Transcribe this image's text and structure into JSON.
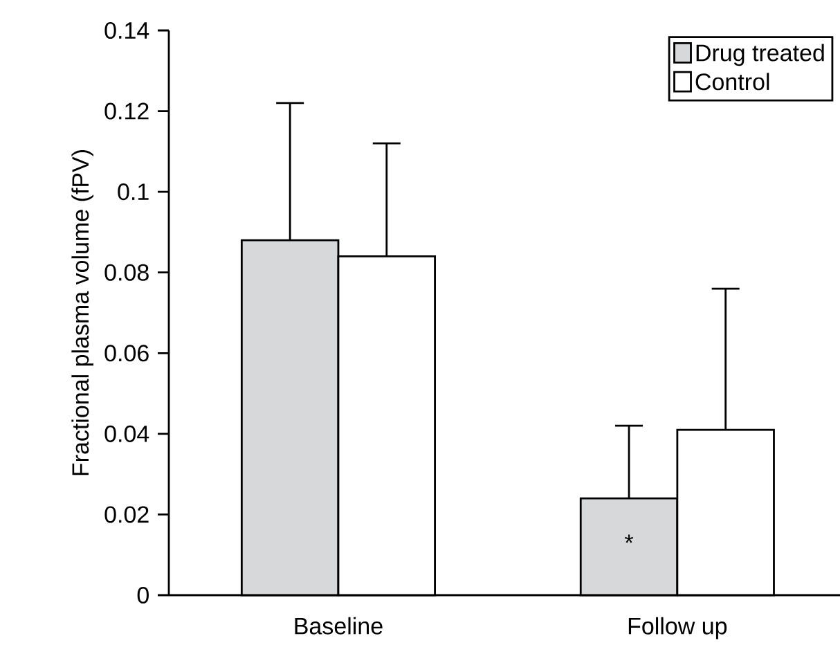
{
  "chart_data": {
    "type": "bar",
    "ylabel": "Fractional plasma volume (fPV)",
    "categories": [
      "Baseline",
      "Follow up"
    ],
    "series": [
      {
        "name": "Drug treated",
        "color": "#d7d8da",
        "values": [
          0.088,
          0.024
        ],
        "errors": [
          [
            0.088,
            0.122
          ],
          [
            0.024,
            0.042
          ]
        ]
      },
      {
        "name": "Control",
        "color": "#ffffff",
        "values": [
          0.084,
          0.041
        ],
        "errors": [
          [
            0.084,
            0.112
          ],
          [
            0.041,
            0.076
          ]
        ]
      }
    ],
    "ylim": [
      0,
      0.14
    ],
    "yticks": [
      0,
      0.02,
      0.04,
      0.06,
      0.08,
      0.1,
      0.12,
      0.14
    ],
    "annotations": [
      {
        "text": "*",
        "x": "Follow up",
        "y": 0.013
      }
    ],
    "legend": "top right",
    "grid": false
  }
}
